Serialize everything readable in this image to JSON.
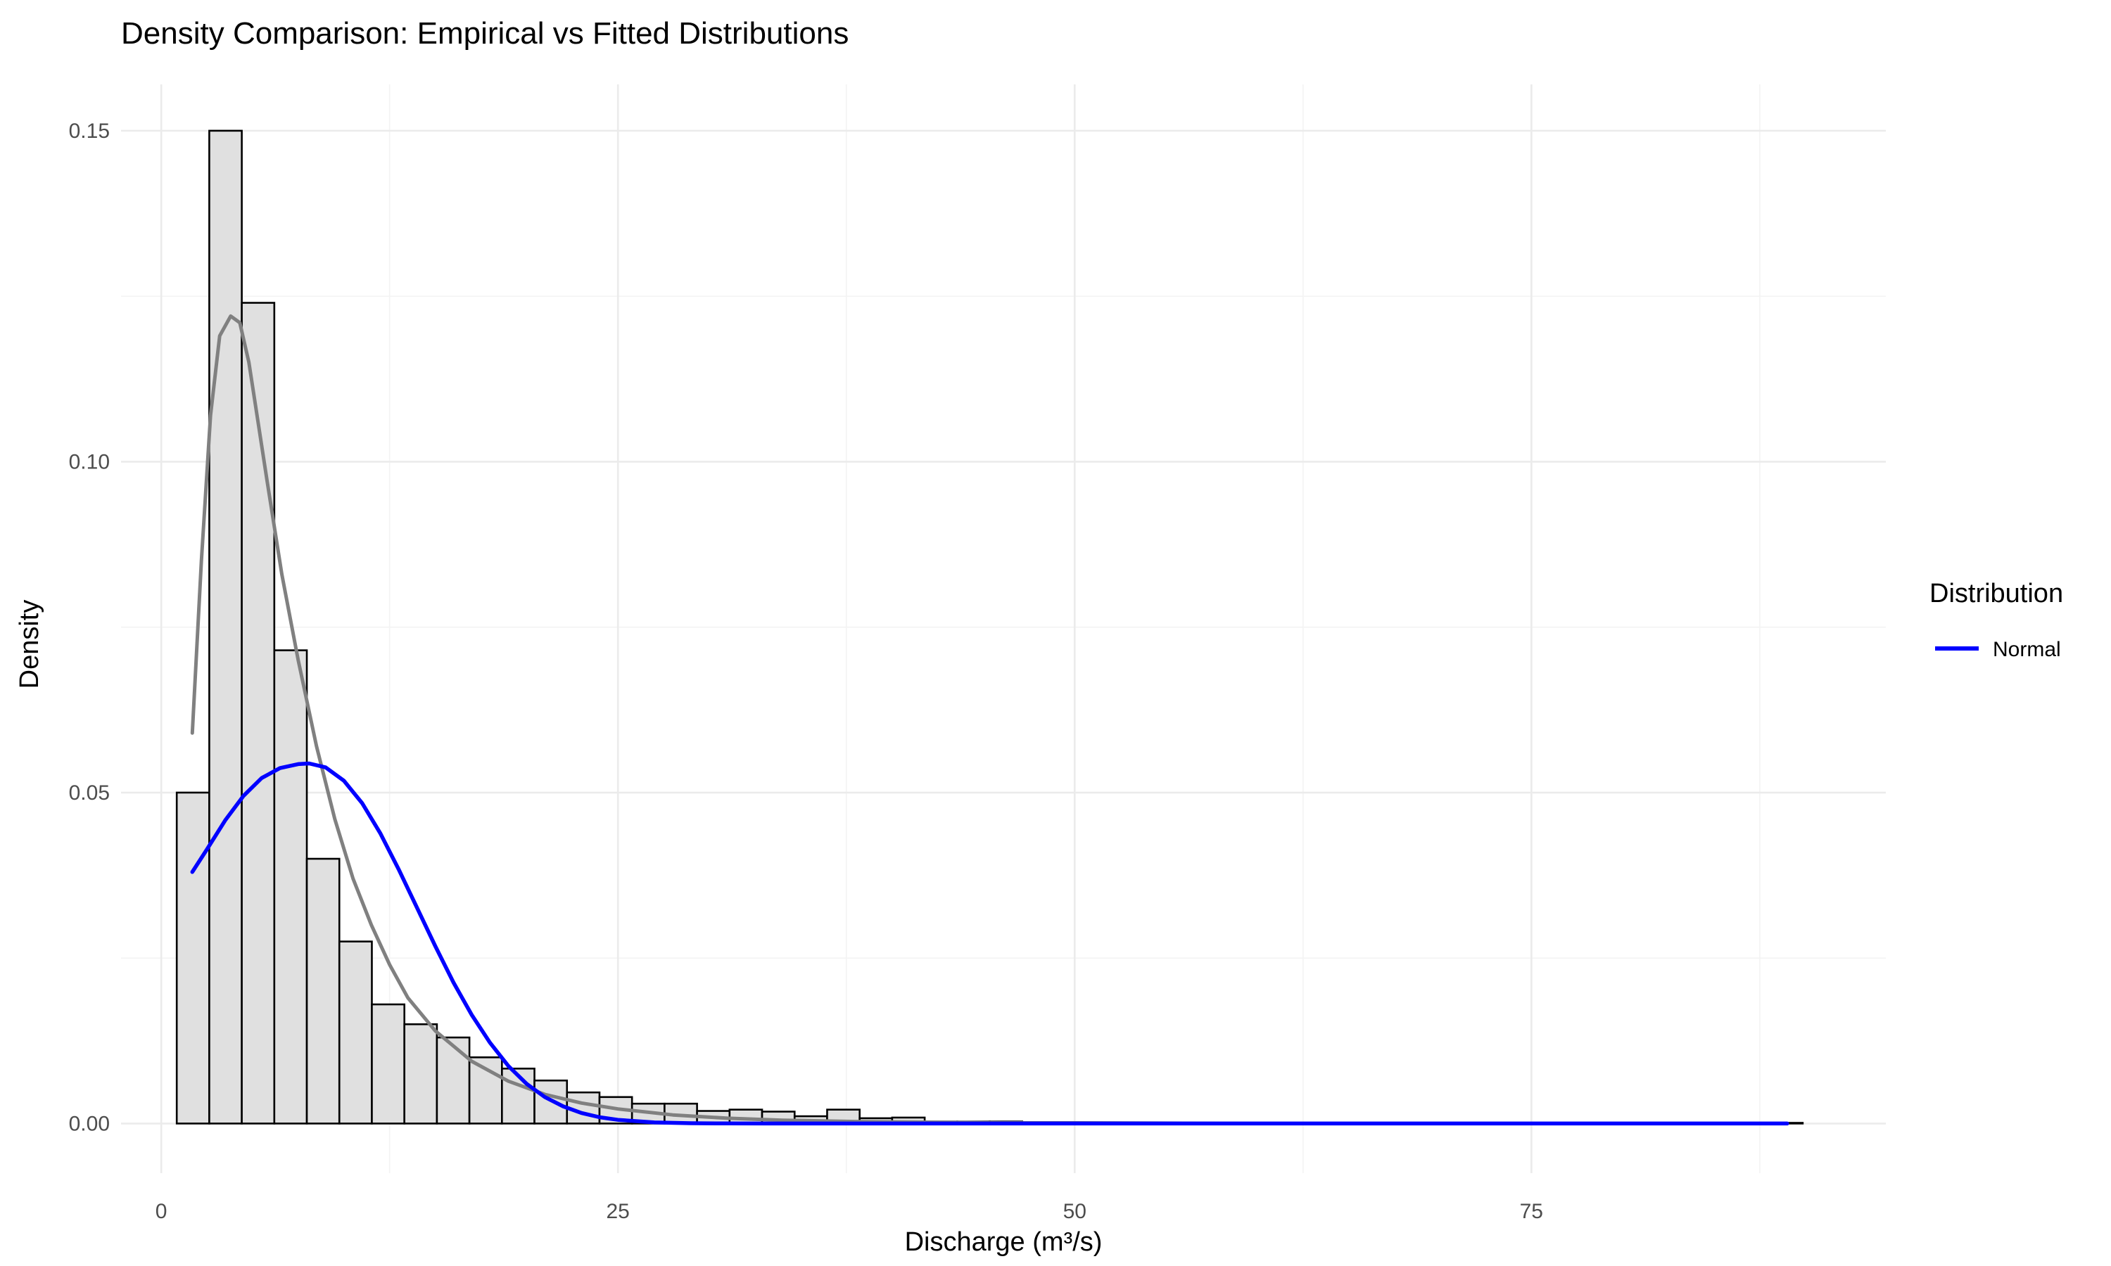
{
  "chart_data": {
    "type": "bar",
    "title": "Density Comparison: Empirical vs Fitted Distributions",
    "xlabel": "Discharge (m³/s)",
    "ylabel": "Density",
    "xlim": [
      -2.2,
      94.4
    ],
    "ylim": [
      -0.0075,
      0.157
    ],
    "x_ticks": [
      0,
      25,
      50,
      75
    ],
    "x_tick_labels": [
      "0",
      "25",
      "50",
      "75"
    ],
    "y_ticks": [
      0.0,
      0.05,
      0.1,
      0.15
    ],
    "y_tick_labels": [
      "0.00",
      "0.05",
      "0.10",
      "0.15"
    ],
    "grid": true,
    "histogram": {
      "bin_width": 1.78,
      "bin_start": 0.85,
      "fill_color": "#e0e0e0",
      "edge_color": "#000000",
      "values": [
        0.05,
        0.15,
        0.124,
        0.0715,
        0.04,
        0.0275,
        0.018,
        0.015,
        0.013,
        0.01,
        0.0083,
        0.0065,
        0.0047,
        0.004,
        0.003,
        0.003,
        0.0019,
        0.0021,
        0.0018,
        0.0011,
        0.0021,
        0.0008,
        0.0009,
        0.0003,
        0.0003,
        0.0003,
        0.0002,
        0.0001,
        0.0001,
        0.0001,
        0.0001,
        0.0001,
        0.0001,
        0.0001,
        0.0001,
        0.0001,
        0.0001,
        0.0001,
        0.0001,
        0.0001,
        0.0001,
        0.0001,
        0.0001,
        0.0001,
        0.0001,
        0.0001,
        0.0001,
        0.0001,
        0.0001,
        0.0001
      ]
    },
    "series": [
      {
        "type": "line",
        "color": "#808080",
        "x": [
          1.7,
          2.2,
          2.7,
          3.2,
          3.8,
          4.3,
          4.8,
          5.3,
          5.8,
          6.6,
          7.5,
          8.5,
          9.5,
          10.5,
          11.5,
          12.5,
          13.5,
          15,
          17,
          19,
          21,
          23,
          25,
          28,
          31,
          34,
          38,
          42,
          46,
          50,
          60,
          70,
          80,
          89
        ],
        "y": [
          0.059,
          0.085,
          0.107,
          0.119,
          0.122,
          0.121,
          0.115,
          0.106,
          0.097,
          0.083,
          0.07,
          0.057,
          0.046,
          0.037,
          0.03,
          0.024,
          0.019,
          0.014,
          0.0094,
          0.0064,
          0.0044,
          0.0031,
          0.0022,
          0.0013,
          0.0008,
          0.0005,
          0.0003,
          0.0002,
          0.0001,
          0.0001,
          0.0,
          0.0,
          0.0,
          0.0
        ]
      },
      {
        "name": "Normal",
        "type": "line",
        "color": "#0000ff",
        "x": [
          1.7,
          2.5,
          3.5,
          4.5,
          5.5,
          6.5,
          7.5,
          8.1,
          9,
          10,
          11,
          12,
          13,
          14,
          15,
          16,
          17,
          18,
          19,
          20,
          21,
          22,
          23,
          24,
          25,
          27,
          29,
          31,
          33,
          35,
          40,
          50,
          60,
          70,
          80,
          89
        ],
        "y": [
          0.038,
          0.0414,
          0.0458,
          0.0495,
          0.0522,
          0.0537,
          0.0543,
          0.0544,
          0.0538,
          0.0518,
          0.0484,
          0.0438,
          0.0384,
          0.0326,
          0.0268,
          0.0213,
          0.0164,
          0.0122,
          0.0087,
          0.006,
          0.004,
          0.0026,
          0.0016,
          0.00095,
          0.00055,
          0.00016,
          4e-05,
          1e-05,
          0.0,
          0.0,
          0.0,
          0.0,
          0.0,
          0.0,
          0.0,
          0.0
        ]
      }
    ],
    "legend": {
      "title": "Distribution",
      "position": "right",
      "entries": [
        {
          "label": "Normal",
          "color": "#0000ff"
        }
      ]
    }
  }
}
